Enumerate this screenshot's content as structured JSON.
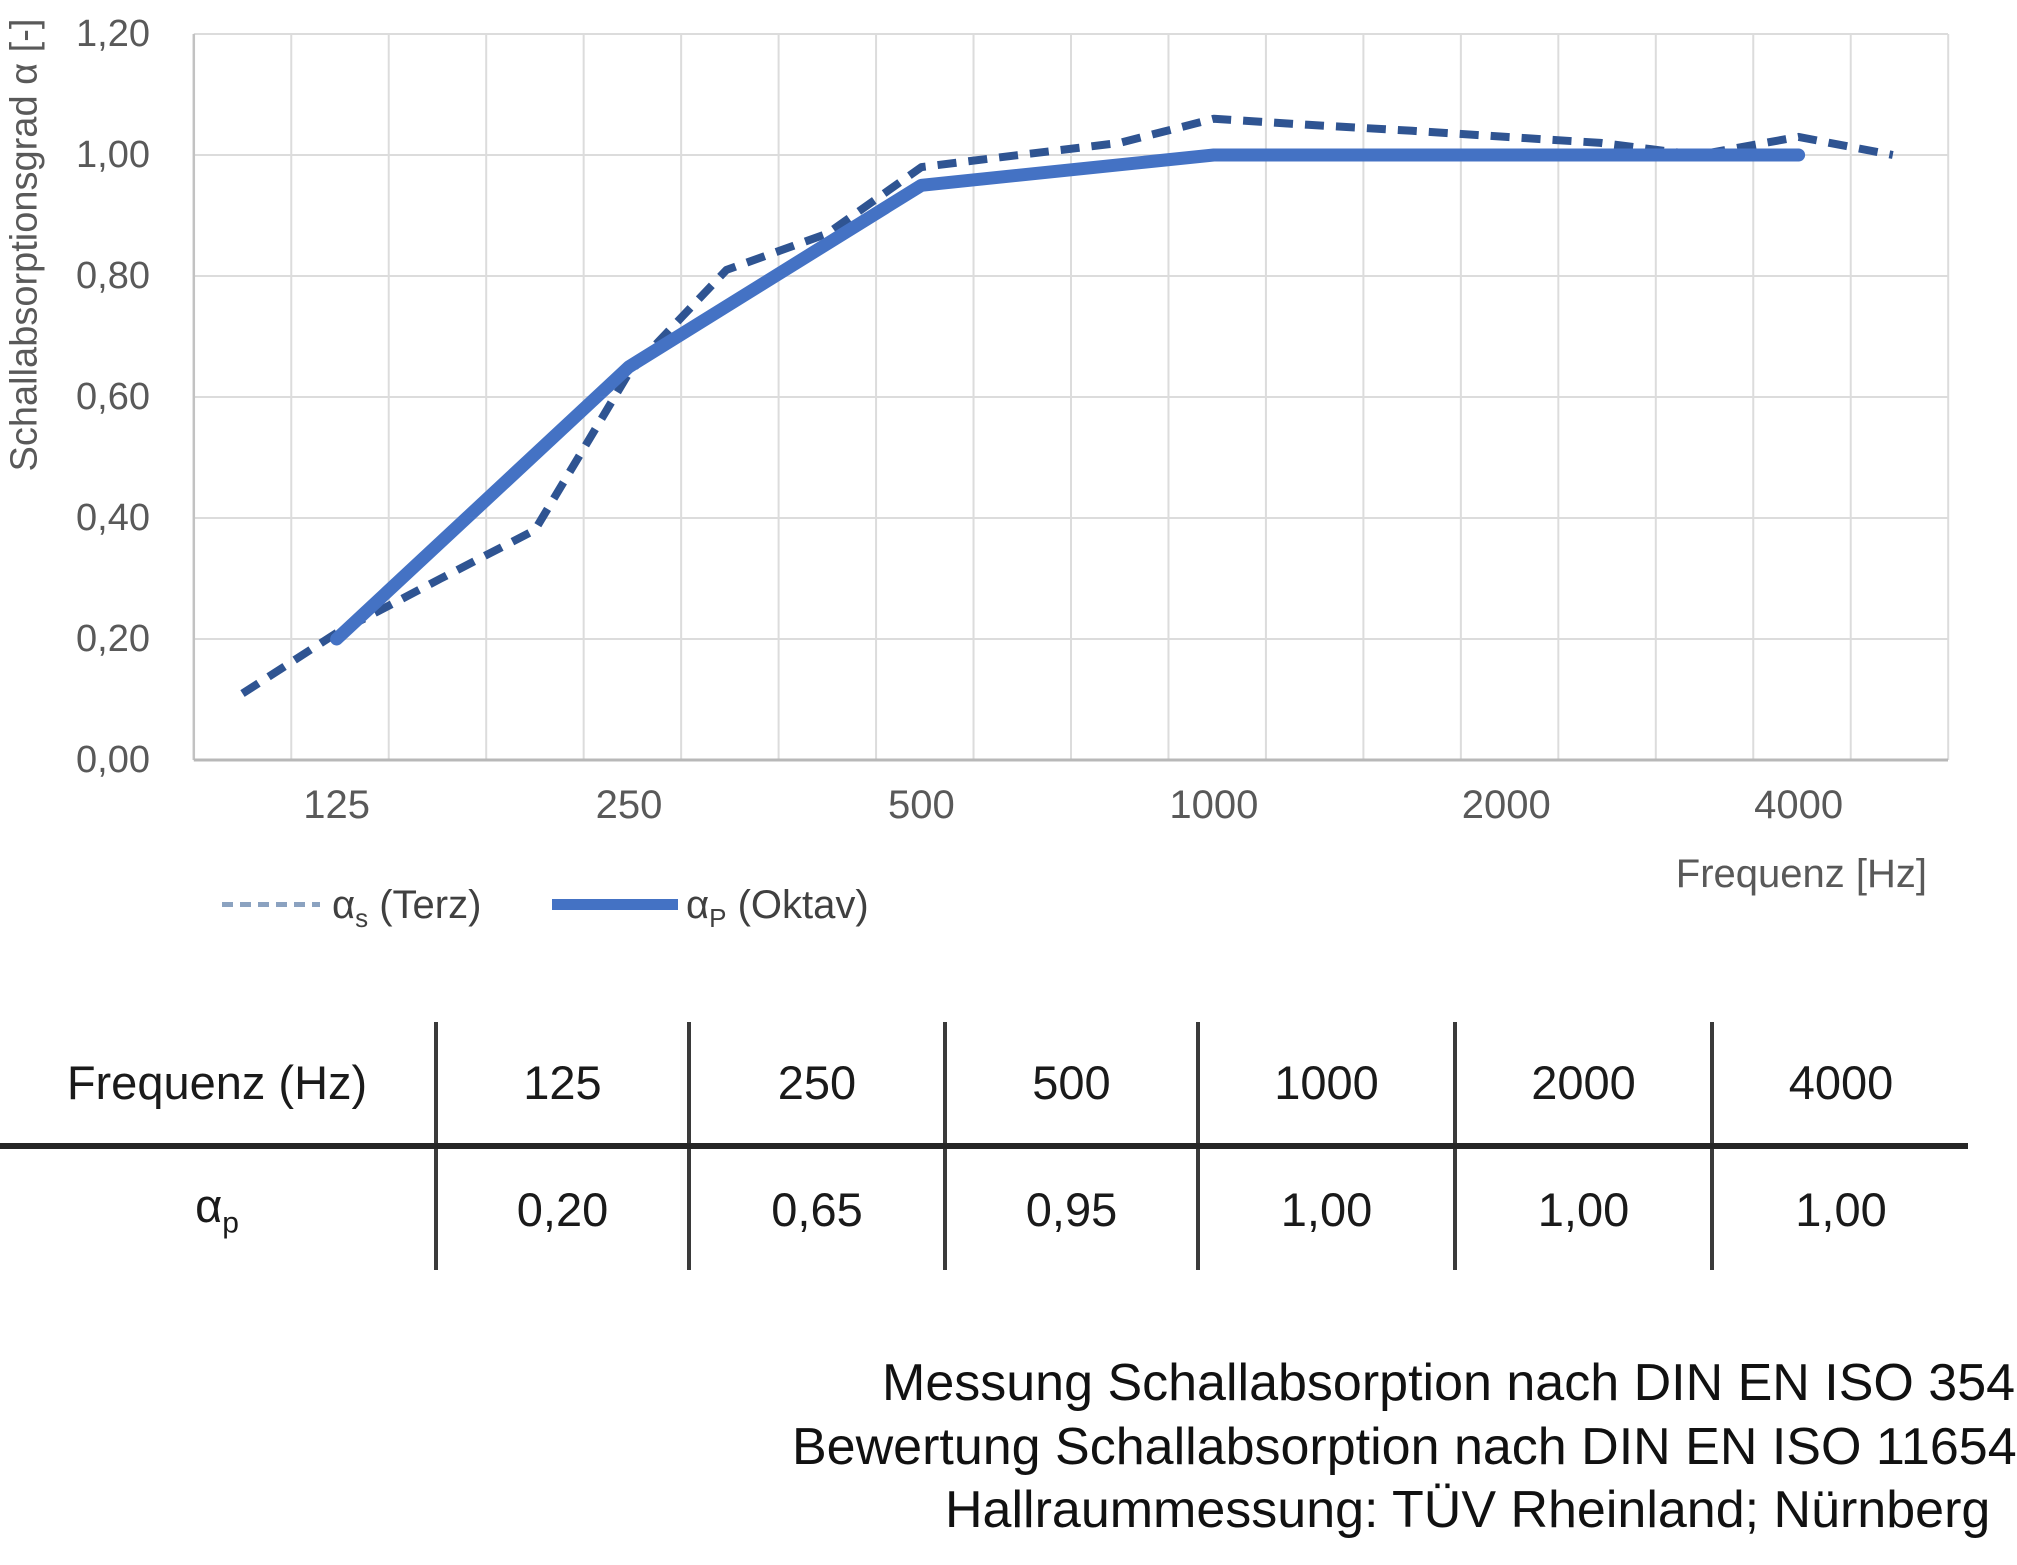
{
  "chart_data": {
    "type": "line",
    "title": "",
    "xlabel": "Frequenz [Hz]",
    "ylabel": "Schallabsorptionsgrad α [-]",
    "x_scale": "logarithmic (third-octave categories, 100–5000 Hz)",
    "x_ticks_hz": [
      125,
      250,
      500,
      1000,
      2000,
      4000
    ],
    "x_tick_labels": [
      "125",
      "250",
      "500",
      "1000",
      "2000",
      "4000"
    ],
    "y_tick_labels": [
      "0,00",
      "0,20",
      "0,40",
      "0,60",
      "0,80",
      "1,00",
      "1,20"
    ],
    "ylim": [
      0,
      1.2
    ],
    "y_step": 0.2,
    "grid": true,
    "legend_position": "bottom-left",
    "series": [
      {
        "name": "αs (Terz)",
        "legend": {
          "symbol": "α",
          "sub": "s",
          "rest": " (Terz)"
        },
        "style": "dashed",
        "color": "#2f5492",
        "x": [
          100,
          125,
          160,
          200,
          250,
          315,
          400,
          500,
          630,
          800,
          1000,
          1250,
          1600,
          2000,
          2500,
          3150,
          4000,
          5000
        ],
        "values": [
          0.11,
          0.21,
          0.3,
          0.38,
          0.64,
          0.81,
          0.87,
          0.98,
          1.0,
          1.02,
          1.06,
          1.05,
          1.04,
          1.03,
          1.02,
          1.0,
          1.03,
          1.0
        ]
      },
      {
        "name": "αP (Oktav)",
        "legend": {
          "symbol": "α",
          "sub": "P",
          "rest": " (Oktav)"
        },
        "style": "solid",
        "color": "#4472c4",
        "x": [
          125,
          250,
          500,
          1000,
          2000,
          4000
        ],
        "values": [
          0.2,
          0.65,
          0.95,
          1.0,
          1.0,
          1.0
        ]
      }
    ]
  },
  "table": {
    "header_row": {
      "label": "Frequenz (Hz)",
      "values": [
        "125",
        "250",
        "500",
        "1000",
        "2000",
        "4000"
      ]
    },
    "alpha_row": {
      "label": {
        "symbol": "α",
        "sub": "p"
      },
      "values": [
        "0,20",
        "0,65",
        "0,95",
        "1,00",
        "1,00",
        "1,00"
      ]
    }
  },
  "notes": [
    "Messung Schallabsorption nach DIN EN ISO 354",
    "Bewertung Schallabsorption nach DIN EN ISO 11654",
    "Hallraummessung: TÜV Rheinland; Nürnberg"
  ]
}
